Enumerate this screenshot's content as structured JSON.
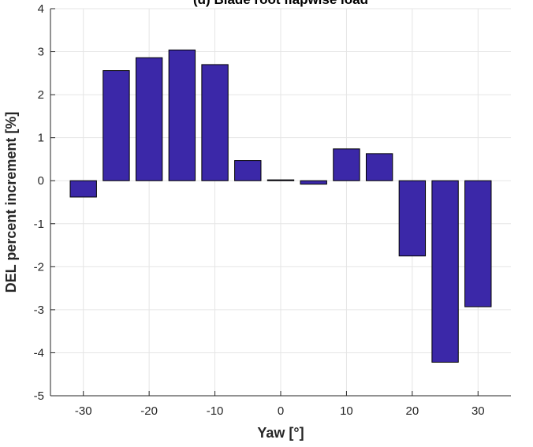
{
  "chart_data": {
    "type": "bar",
    "title": "(d) Blade root flapwise load",
    "xlabel": "Yaw [°]",
    "ylabel": "DEL percent increment [%]",
    "x": [
      -30,
      -25,
      -20,
      -15,
      -10,
      -5,
      0,
      5,
      10,
      15,
      20,
      25,
      30
    ],
    "values": [
      -0.38,
      2.56,
      2.86,
      3.04,
      2.7,
      0.47,
      0.02,
      -0.08,
      0.74,
      0.63,
      -1.75,
      -4.22,
      -2.93
    ],
    "xlim": [
      -35,
      35
    ],
    "ylim": [
      -5,
      4
    ],
    "xticks": [
      -30,
      -20,
      -10,
      0,
      10,
      20,
      30
    ],
    "xtick_labels": [
      "-30",
      "-20",
      "-10",
      "0",
      "10",
      "20",
      "30"
    ],
    "yticks": [
      -5,
      -4,
      -3,
      -2,
      -1,
      0,
      1,
      2,
      3,
      4
    ],
    "ytick_labels": [
      "-5",
      "-4",
      "-3",
      "-2",
      "-1",
      "0",
      "1",
      "2",
      "3",
      "4"
    ],
    "grid": true,
    "colors": {
      "bar": "#3b28a8",
      "bar_edge": "#000000",
      "grid": "#e5e5e5",
      "axis": "#262626"
    }
  }
}
